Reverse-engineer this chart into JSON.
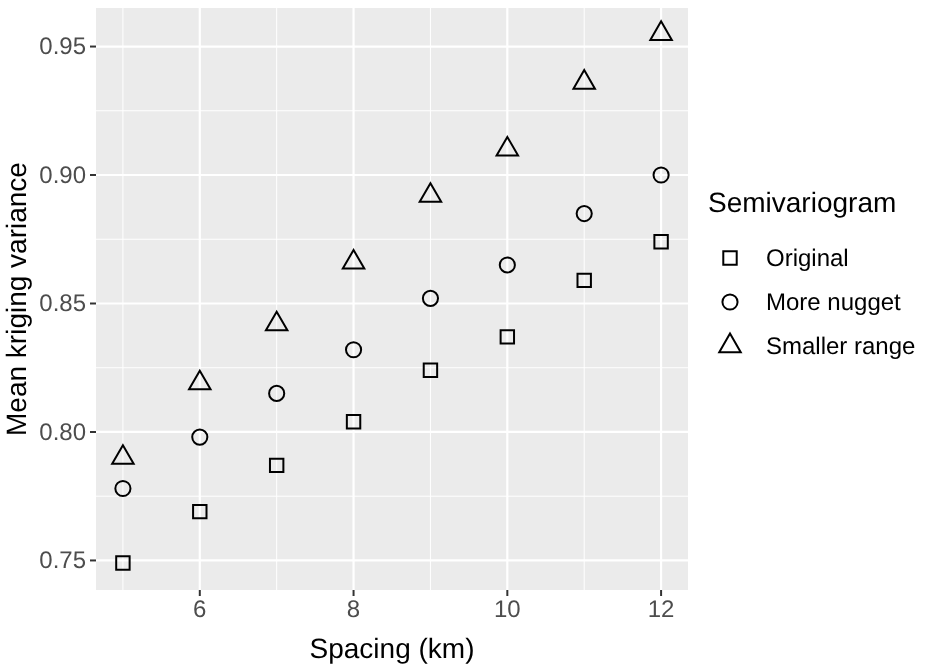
{
  "chart_data": {
    "type": "scatter",
    "xlabel": "Spacing (km)",
    "ylabel": "Mean kriging variance",
    "legend_title": "Semivariogram",
    "x": [
      5,
      6,
      7,
      8,
      9,
      10,
      11,
      12
    ],
    "series": [
      {
        "name": "Original",
        "color": "#000000",
        "marker": "square",
        "values": [
          0.749,
          0.769,
          0.787,
          0.804,
          0.824,
          0.837,
          0.859,
          0.874
        ]
      },
      {
        "name": "More nugget",
        "color": "#000000",
        "marker": "circle",
        "values": [
          0.778,
          0.798,
          0.815,
          0.832,
          0.852,
          0.865,
          0.885,
          0.9
        ]
      },
      {
        "name": "Smaller range",
        "color": "#000000",
        "marker": "triangle",
        "values": [
          0.79,
          0.819,
          0.842,
          0.866,
          0.892,
          0.91,
          0.936,
          0.955
        ]
      }
    ],
    "xlim": [
      4.65,
      12.35
    ],
    "ylim": [
      0.7385,
      0.965
    ],
    "xticks": [
      6,
      8,
      10,
      12
    ],
    "yticks": [
      {
        "value": 0.75,
        "label": "0.75"
      },
      {
        "value": 0.8,
        "label": "0.80"
      },
      {
        "value": 0.85,
        "label": "0.85"
      },
      {
        "value": 0.9,
        "label": "0.90"
      },
      {
        "value": 0.95,
        "label": "0.95"
      }
    ],
    "grid": true,
    "legend": "right"
  }
}
